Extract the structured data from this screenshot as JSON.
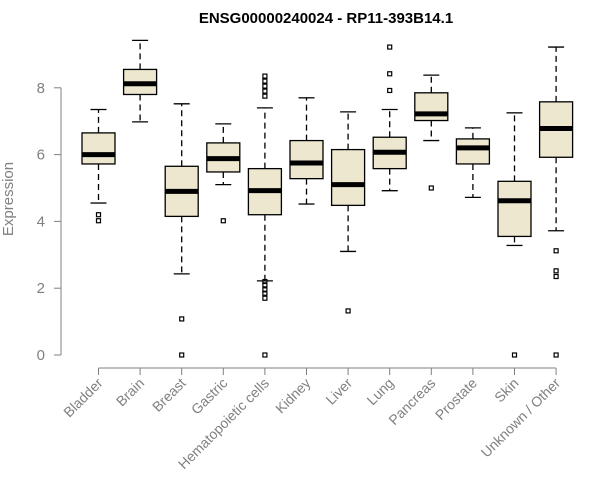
{
  "chart_data": {
    "type": "boxplot",
    "title": "ENSG00000240024 - RP11-393B14.1",
    "xlabel": "",
    "ylabel": "Expression",
    "ylim": [
      0,
      9.4
    ],
    "yticks": [
      0,
      2,
      4,
      6,
      8
    ],
    "grid": false,
    "colors": {
      "box_fill": "#ede7cf",
      "box_stroke": "#000000",
      "axis": "#808080"
    },
    "categories": [
      "Bladder",
      "Brain",
      "Breast",
      "Gastric",
      "Hematopoietic cells",
      "Kidney",
      "Liver",
      "Lung",
      "Pancreas",
      "Prostate",
      "Skin",
      "Unknown / Other"
    ],
    "boxes": [
      {
        "category": "Bladder",
        "whisker_low": 4.55,
        "q1": 5.72,
        "median": 6.0,
        "q3": 6.65,
        "whisker_high": 7.35,
        "outliers": [
          4.2,
          4.02
        ]
      },
      {
        "category": "Brain",
        "whisker_low": 6.98,
        "q1": 7.8,
        "median": 8.12,
        "q3": 8.55,
        "whisker_high": 9.42,
        "outliers": []
      },
      {
        "category": "Breast",
        "whisker_low": 2.43,
        "q1": 4.15,
        "median": 4.9,
        "q3": 5.65,
        "whisker_high": 7.52,
        "outliers": [
          1.08,
          0.0
        ]
      },
      {
        "category": "Gastric",
        "whisker_low": 5.1,
        "q1": 5.48,
        "median": 5.88,
        "q3": 6.35,
        "whisker_high": 6.92,
        "outliers": [
          4.02
        ]
      },
      {
        "category": "Hematopoietic cells",
        "whisker_low": 2.22,
        "q1": 4.2,
        "median": 4.92,
        "q3": 5.58,
        "whisker_high": 7.4,
        "outliers": [
          8.35,
          8.2,
          8.05,
          7.9,
          7.75,
          2.2,
          2.1,
          1.95,
          1.85,
          1.7,
          0.0
        ]
      },
      {
        "category": "Kidney",
        "whisker_low": 4.52,
        "q1": 5.28,
        "median": 5.75,
        "q3": 6.42,
        "whisker_high": 7.7,
        "outliers": []
      },
      {
        "category": "Liver",
        "whisker_low": 3.1,
        "q1": 4.48,
        "median": 5.1,
        "q3": 6.15,
        "whisker_high": 7.28,
        "outliers": [
          1.32
        ]
      },
      {
        "category": "Lung",
        "whisker_low": 4.92,
        "q1": 5.58,
        "median": 6.07,
        "q3": 6.52,
        "whisker_high": 7.35,
        "outliers": [
          9.22,
          8.42,
          7.92
        ]
      },
      {
        "category": "Pancreas",
        "whisker_low": 6.42,
        "q1": 7.02,
        "median": 7.22,
        "q3": 7.85,
        "whisker_high": 8.38,
        "outliers": [
          5.0
        ]
      },
      {
        "category": "Prostate",
        "whisker_low": 4.72,
        "q1": 5.72,
        "median": 6.2,
        "q3": 6.47,
        "whisker_high": 6.8,
        "outliers": []
      },
      {
        "category": "Skin",
        "whisker_low": 3.28,
        "q1": 3.55,
        "median": 4.62,
        "q3": 5.2,
        "whisker_high": 7.25,
        "outliers": [
          0.0
        ]
      },
      {
        "category": "Unknown / Other",
        "whisker_low": 3.72,
        "q1": 5.92,
        "median": 6.78,
        "q3": 7.58,
        "whisker_high": 9.22,
        "outliers": [
          3.12,
          2.52,
          2.35,
          0.0
        ]
      }
    ]
  }
}
